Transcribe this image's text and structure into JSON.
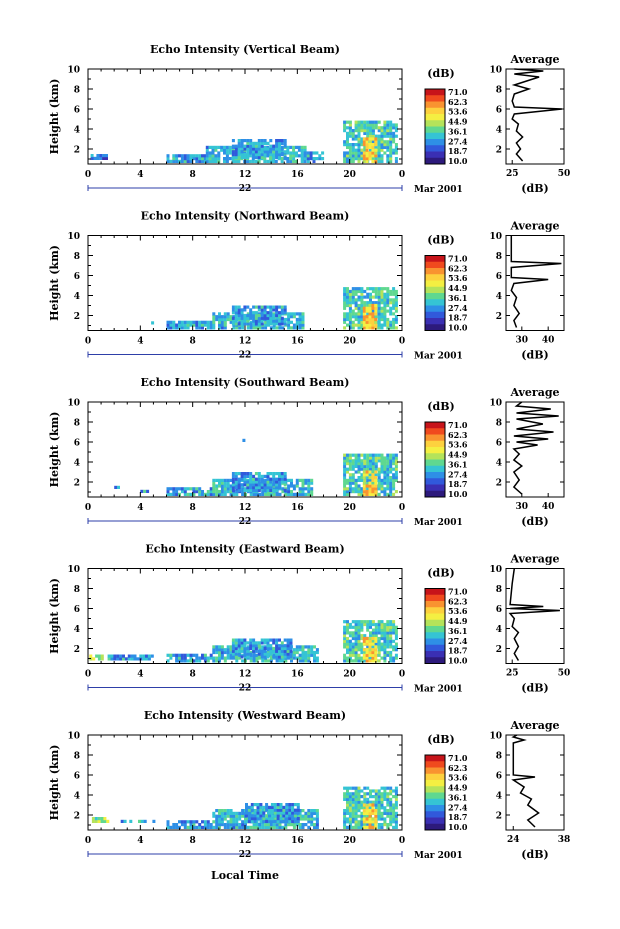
{
  "page": {
    "xaxis_label": "Local Time"
  },
  "colorbar": {
    "unit": "(dB)",
    "ticks": [
      "71.0",
      "62.3",
      "53.6",
      "44.9",
      "36.1",
      "27.4",
      "18.7",
      "10.0"
    ],
    "colors": [
      "#c7141a",
      "#f04a1e",
      "#f99330",
      "#fdd13e",
      "#f4ef42",
      "#b4e35a",
      "#5fd890",
      "#35c4d4",
      "#2e8fe6",
      "#3159db",
      "#3a2fb3",
      "#2d1a7c"
    ]
  },
  "chart_data": [
    {
      "type": "heatmap",
      "title": "Echo Intensity (Vertical Beam)",
      "ylabel": "Height (km)",
      "xlabel": "Local Time",
      "x_ticks": [
        "0",
        "4",
        "8",
        "12",
        "16",
        "20",
        "0"
      ],
      "y_ticks": [
        "2",
        "4",
        "6",
        "8",
        "10"
      ],
      "xlim": [
        0,
        24
      ],
      "ylim": [
        0.5,
        10
      ],
      "date_left": "22",
      "date_right": "Mar 2001",
      "clim": [
        10.0,
        71.0
      ],
      "echo_regions": [
        {
          "t0": 0.2,
          "t1": 1.5,
          "h0": 0.9,
          "h1": 1.4,
          "level": 0.2
        },
        {
          "t0": 6.0,
          "t1": 9.0,
          "h0": 0.6,
          "h1": 1.2,
          "level": 0.3
        },
        {
          "t0": 9.0,
          "t1": 16.5,
          "h0": 0.6,
          "h1": 2.2,
          "level": 0.35
        },
        {
          "t0": 11.0,
          "t1": 15.0,
          "h0": 1.0,
          "h1": 2.8,
          "level": 0.3
        },
        {
          "t0": 16.5,
          "t1": 18.0,
          "h0": 0.6,
          "h1": 1.6,
          "level": 0.3
        },
        {
          "t0": 19.5,
          "t1": 23.6,
          "h0": 0.6,
          "h1": 4.8,
          "level": 0.4
        },
        {
          "t0": 21.0,
          "t1": 22.0,
          "h0": 0.6,
          "h1": 3.0,
          "level": 0.7
        }
      ],
      "average": {
        "title": "Average",
        "xlabel": "(dB)",
        "x_ticks": [
          "25",
          "50"
        ],
        "xlim": [
          22,
          50
        ],
        "profile": [
          {
            "db": 30,
            "h": 0.8
          },
          {
            "db": 27,
            "h": 1.5
          },
          {
            "db": 29,
            "h": 2.0
          },
          {
            "db": 27,
            "h": 2.6
          },
          {
            "db": 30,
            "h": 3.2
          },
          {
            "db": 27,
            "h": 3.8
          },
          {
            "db": 28,
            "h": 4.5
          },
          {
            "db": 25,
            "h": 5.0
          },
          {
            "db": 26,
            "h": 5.5
          },
          {
            "db": 49,
            "h": 6.0
          },
          {
            "db": 26,
            "h": 6.2
          },
          {
            "db": 25,
            "h": 6.8
          },
          {
            "db": 26,
            "h": 7.5
          },
          {
            "db": 33,
            "h": 8.0
          },
          {
            "db": 26,
            "h": 8.4
          },
          {
            "db": 38,
            "h": 9.2
          },
          {
            "db": 26,
            "h": 9.5
          },
          {
            "db": 40,
            "h": 9.8
          },
          {
            "db": 26,
            "h": 10.0
          }
        ]
      }
    },
    {
      "type": "heatmap",
      "title": "Echo Intensity (Northward Beam)",
      "ylabel": "Height (km)",
      "xlabel": "Local Time",
      "x_ticks": [
        "0",
        "4",
        "8",
        "12",
        "16",
        "20",
        "0"
      ],
      "y_ticks": [
        "2",
        "4",
        "6",
        "8",
        "10"
      ],
      "xlim": [
        0,
        24
      ],
      "ylim": [
        0.5,
        10
      ],
      "date_left": "22",
      "date_right": "Mar 2001",
      "clim": [
        10.0,
        71.0
      ],
      "echo_regions": [
        {
          "t0": 4.6,
          "t1": 5.0,
          "h0": 1.1,
          "h1": 1.3,
          "level": 0.3
        },
        {
          "t0": 6.0,
          "t1": 9.5,
          "h0": 0.6,
          "h1": 1.2,
          "level": 0.3
        },
        {
          "t0": 9.5,
          "t1": 16.5,
          "h0": 0.6,
          "h1": 2.2,
          "level": 0.35
        },
        {
          "t0": 11.0,
          "t1": 15.0,
          "h0": 1.0,
          "h1": 2.8,
          "level": 0.3
        },
        {
          "t0": 19.5,
          "t1": 23.6,
          "h0": 0.6,
          "h1": 4.6,
          "level": 0.4
        },
        {
          "t0": 21.0,
          "t1": 22.0,
          "h0": 0.6,
          "h1": 3.0,
          "level": 0.7
        }
      ],
      "average": {
        "title": "Average",
        "xlabel": "(dB)",
        "x_ticks": [
          "30",
          "40"
        ],
        "xlim": [
          24,
          46
        ],
        "profile": [
          {
            "db": 28,
            "h": 0.8
          },
          {
            "db": 27,
            "h": 1.5
          },
          {
            "db": 29,
            "h": 2.2
          },
          {
            "db": 27,
            "h": 3.0
          },
          {
            "db": 28,
            "h": 3.8
          },
          {
            "db": 26,
            "h": 4.5
          },
          {
            "db": 27,
            "h": 5.2
          },
          {
            "db": 40,
            "h": 5.6
          },
          {
            "db": 26,
            "h": 5.8
          },
          {
            "db": 26,
            "h": 6.8
          },
          {
            "db": 45,
            "h": 7.2
          },
          {
            "db": 26,
            "h": 7.4
          },
          {
            "db": 26,
            "h": 10.0
          }
        ]
      }
    },
    {
      "type": "heatmap",
      "title": "Echo Intensity (Southward Beam)",
      "ylabel": "Height (km)",
      "xlabel": "Local Time",
      "x_ticks": [
        "0",
        "4",
        "8",
        "12",
        "16",
        "20",
        "0"
      ],
      "y_ticks": [
        "2",
        "4",
        "6",
        "8",
        "10"
      ],
      "xlim": [
        0,
        24
      ],
      "ylim": [
        0.5,
        10
      ],
      "date_left": "22",
      "date_right": "Mar 2001",
      "clim": [
        10.0,
        71.0
      ],
      "echo_regions": [
        {
          "t0": 2.0,
          "t1": 2.4,
          "h0": 1.3,
          "h1": 1.5,
          "level": 0.3
        },
        {
          "t0": 4.0,
          "t1": 4.5,
          "h0": 0.9,
          "h1": 1.1,
          "level": 0.3
        },
        {
          "t0": 11.8,
          "t1": 12.0,
          "h0": 6.0,
          "h1": 6.2,
          "level": 0.4
        },
        {
          "t0": 6.0,
          "t1": 9.5,
          "h0": 0.6,
          "h1": 1.2,
          "level": 0.3
        },
        {
          "t0": 9.5,
          "t1": 17.0,
          "h0": 0.6,
          "h1": 2.2,
          "level": 0.35
        },
        {
          "t0": 11.0,
          "t1": 15.0,
          "h0": 1.0,
          "h1": 2.8,
          "level": 0.3
        },
        {
          "t0": 19.5,
          "t1": 23.6,
          "h0": 0.6,
          "h1": 4.8,
          "level": 0.4
        },
        {
          "t0": 21.0,
          "t1": 22.0,
          "h0": 0.6,
          "h1": 3.0,
          "level": 0.7
        }
      ],
      "average": {
        "title": "Average",
        "xlabel": "(dB)",
        "x_ticks": [
          "30",
          "40"
        ],
        "xlim": [
          24,
          46
        ],
        "profile": [
          {
            "db": 30,
            "h": 0.8
          },
          {
            "db": 27,
            "h": 1.5
          },
          {
            "db": 29,
            "h": 2.2
          },
          {
            "db": 27,
            "h": 3.0
          },
          {
            "db": 30,
            "h": 3.6
          },
          {
            "db": 27,
            "h": 4.2
          },
          {
            "db": 29,
            "h": 4.8
          },
          {
            "db": 27,
            "h": 5.3
          },
          {
            "db": 36,
            "h": 5.7
          },
          {
            "db": 28,
            "h": 6.0
          },
          {
            "db": 40,
            "h": 6.3
          },
          {
            "db": 27,
            "h": 6.6
          },
          {
            "db": 42,
            "h": 7.0
          },
          {
            "db": 28,
            "h": 7.3
          },
          {
            "db": 38,
            "h": 7.8
          },
          {
            "db": 28,
            "h": 8.3
          },
          {
            "db": 44,
            "h": 8.6
          },
          {
            "db": 28,
            "h": 8.9
          },
          {
            "db": 41,
            "h": 9.3
          },
          {
            "db": 28,
            "h": 9.6
          },
          {
            "db": 30,
            "h": 10.0
          }
        ]
      }
    },
    {
      "type": "heatmap",
      "title": "Echo Intensity (Eastward Beam)",
      "ylabel": "Height (km)",
      "xlabel": "Local Time",
      "x_ticks": [
        "0",
        "4",
        "8",
        "12",
        "16",
        "20",
        "0"
      ],
      "y_ticks": [
        "2",
        "4",
        "6",
        "8",
        "10"
      ],
      "xlim": [
        0,
        24
      ],
      "ylim": [
        0.5,
        10
      ],
      "date_left": "22",
      "date_right": "Mar 2001",
      "clim": [
        10.0,
        71.0
      ],
      "echo_regions": [
        {
          "t0": 0.1,
          "t1": 1.2,
          "h0": 0.8,
          "h1": 1.3,
          "level": 0.5
        },
        {
          "t0": 1.5,
          "t1": 5.0,
          "h0": 0.8,
          "h1": 1.1,
          "level": 0.3
        },
        {
          "t0": 6.0,
          "t1": 9.5,
          "h0": 0.6,
          "h1": 1.3,
          "level": 0.3
        },
        {
          "t0": 9.5,
          "t1": 17.5,
          "h0": 0.6,
          "h1": 2.2,
          "level": 0.35
        },
        {
          "t0": 11.0,
          "t1": 15.5,
          "h0": 1.0,
          "h1": 2.8,
          "level": 0.3
        },
        {
          "t0": 19.5,
          "t1": 23.6,
          "h0": 0.6,
          "h1": 4.8,
          "level": 0.4
        },
        {
          "t0": 21.0,
          "t1": 22.0,
          "h0": 0.6,
          "h1": 3.0,
          "level": 0.7
        }
      ],
      "average": {
        "title": "Average",
        "xlabel": "(dB)",
        "x_ticks": [
          "25",
          "50"
        ],
        "xlim": [
          22,
          50
        ],
        "profile": [
          {
            "db": 28,
            "h": 0.8
          },
          {
            "db": 26,
            "h": 1.5
          },
          {
            "db": 28,
            "h": 2.2
          },
          {
            "db": 26,
            "h": 3.0
          },
          {
            "db": 28,
            "h": 3.6
          },
          {
            "db": 25,
            "h": 4.2
          },
          {
            "db": 26,
            "h": 5.0
          },
          {
            "db": 24,
            "h": 5.5
          },
          {
            "db": 48,
            "h": 5.8
          },
          {
            "db": 24,
            "h": 6.0
          },
          {
            "db": 40,
            "h": 6.2
          },
          {
            "db": 24,
            "h": 6.4
          },
          {
            "db": 25,
            "h": 8.5
          },
          {
            "db": 26,
            "h": 10.0
          }
        ]
      }
    },
    {
      "type": "heatmap",
      "title": "Echo Intensity (Westward Beam)",
      "ylabel": "Height (km)",
      "xlabel": "Local Time",
      "x_ticks": [
        "0",
        "4",
        "8",
        "12",
        "16",
        "20",
        "0"
      ],
      "y_ticks": [
        "2",
        "4",
        "6",
        "8",
        "10"
      ],
      "xlim": [
        0,
        24
      ],
      "ylim": [
        0.5,
        10
      ],
      "date_left": "22",
      "date_right": "Mar 2001",
      "clim": [
        10.0,
        71.0
      ],
      "echo_regions": [
        {
          "t0": 0.3,
          "t1": 1.5,
          "h0": 1.2,
          "h1": 1.5,
          "level": 0.5
        },
        {
          "t0": 2.5,
          "t1": 5.0,
          "h0": 1.2,
          "h1": 1.4,
          "level": 0.3
        },
        {
          "t0": 6.0,
          "t1": 9.5,
          "h0": 0.6,
          "h1": 1.2,
          "level": 0.3
        },
        {
          "t0": 9.5,
          "t1": 17.5,
          "h0": 0.6,
          "h1": 2.4,
          "level": 0.35
        },
        {
          "t0": 12.0,
          "t1": 16.0,
          "h0": 1.2,
          "h1": 3.0,
          "level": 0.3
        },
        {
          "t0": 19.5,
          "t1": 23.6,
          "h0": 0.6,
          "h1": 4.8,
          "level": 0.4
        },
        {
          "t0": 21.0,
          "t1": 22.0,
          "h0": 0.6,
          "h1": 3.0,
          "level": 0.7
        }
      ],
      "average": {
        "title": "Average",
        "xlabel": "(dB)",
        "x_ticks": [
          "24",
          "38"
        ],
        "xlim": [
          22,
          38
        ],
        "profile": [
          {
            "db": 30,
            "h": 0.8
          },
          {
            "db": 28,
            "h": 1.5
          },
          {
            "db": 31,
            "h": 2.2
          },
          {
            "db": 28,
            "h": 3.0
          },
          {
            "db": 29,
            "h": 3.6
          },
          {
            "db": 26,
            "h": 4.2
          },
          {
            "db": 27,
            "h": 4.8
          },
          {
            "db": 24,
            "h": 5.5
          },
          {
            "db": 30,
            "h": 5.8
          },
          {
            "db": 24,
            "h": 6.0
          },
          {
            "db": 24,
            "h": 9.2
          },
          {
            "db": 27,
            "h": 9.5
          },
          {
            "db": 24,
            "h": 9.8
          },
          {
            "db": 25,
            "h": 10.0
          }
        ]
      }
    }
  ]
}
